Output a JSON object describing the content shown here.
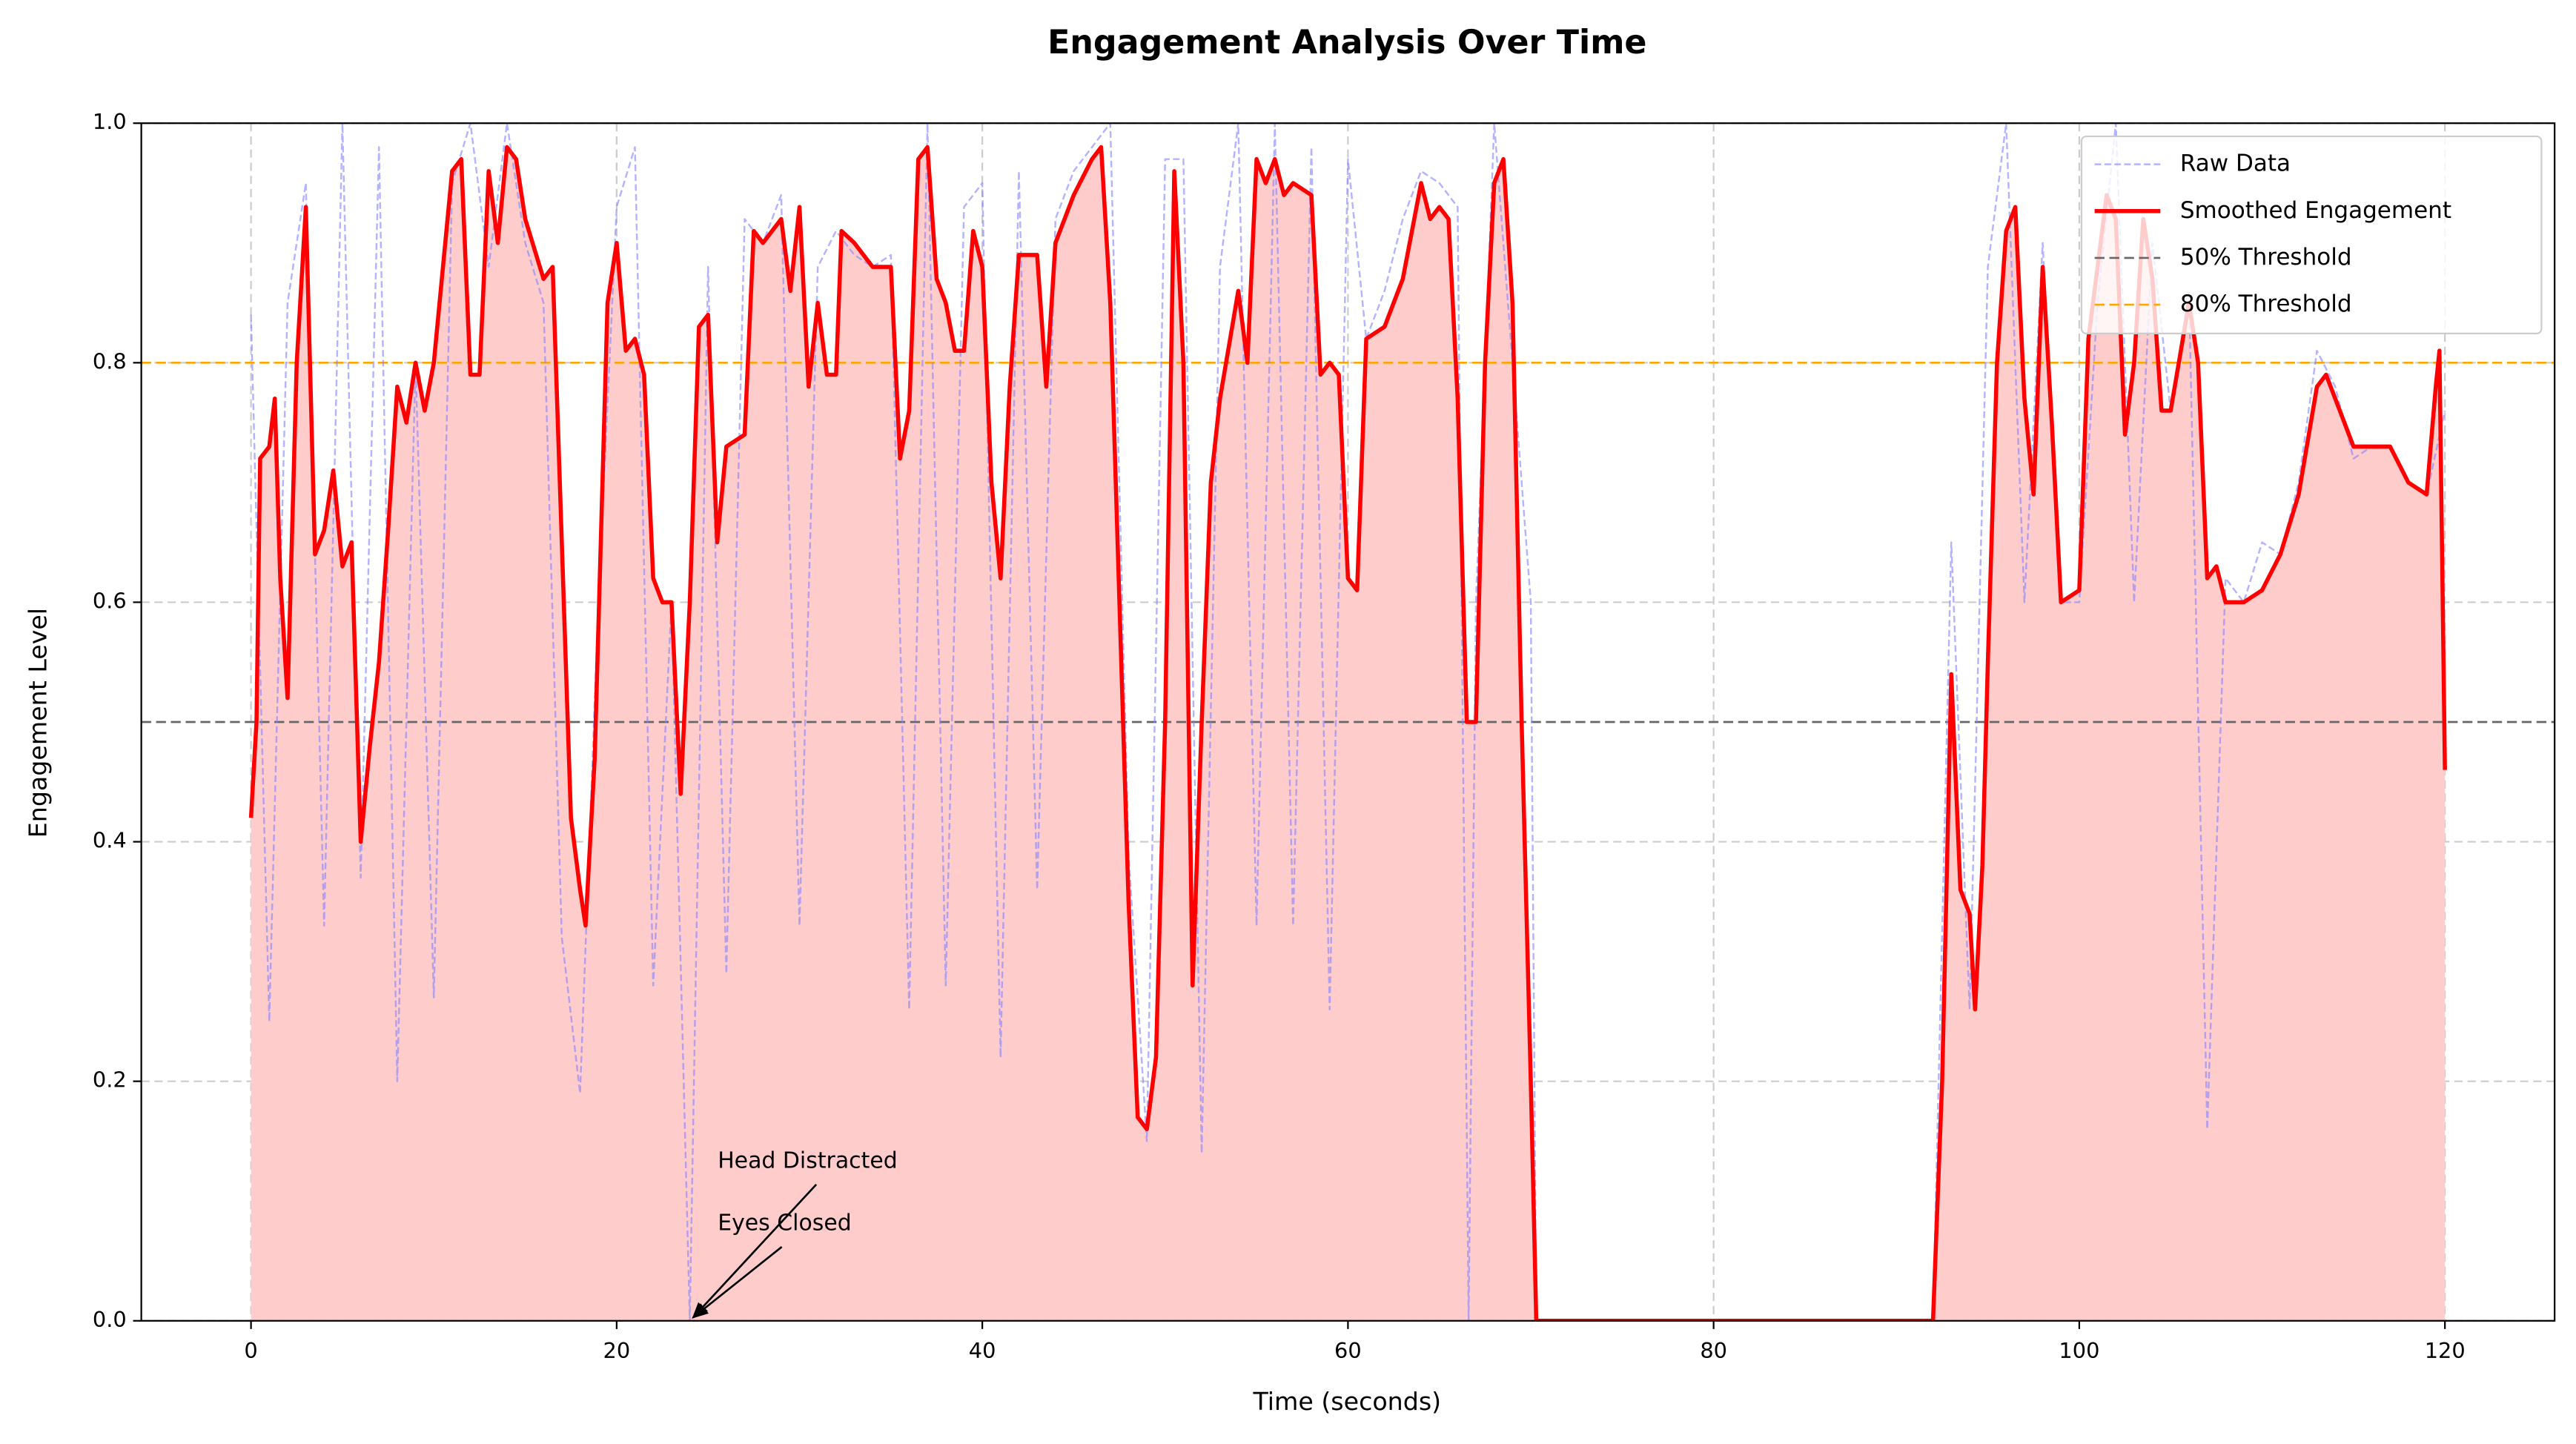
{
  "chart_data": {
    "type": "line",
    "title": "Engagement Analysis Over Time",
    "xlabel": "Time (seconds)",
    "ylabel": "Engagement Level",
    "xlim": [
      -6,
      126
    ],
    "ylim": [
      0,
      1
    ],
    "xticks": [
      0,
      20,
      40,
      60,
      80,
      100,
      120
    ],
    "yticks": [
      {
        "value": 0,
        "label": "0.0"
      },
      0.2,
      0.4,
      0.6,
      0.8,
      {
        "value": 1,
        "label": "1.0"
      }
    ],
    "grid": true,
    "legend": "upper right",
    "series": [
      {
        "name": "Raw Data",
        "color": "#8080ff",
        "style": "dashed",
        "x": [
          0,
          1,
          2,
          3,
          4,
          5,
          6,
          7,
          8,
          9,
          10,
          11,
          12,
          13,
          14,
          15,
          16,
          17,
          18,
          19,
          20,
          21,
          22,
          23,
          24,
          25,
          26,
          27,
          28,
          29,
          30,
          31,
          32,
          33,
          34,
          35,
          36,
          37,
          38,
          39,
          40,
          41,
          42,
          43,
          44,
          45,
          46,
          47,
          48,
          49,
          50,
          51,
          52,
          53,
          54,
          55,
          56,
          57,
          58,
          59,
          60,
          61,
          62,
          63,
          64,
          65,
          66,
          66.6,
          67,
          68,
          69,
          70,
          70.3,
          92,
          93,
          94,
          95,
          96,
          97,
          98,
          99,
          100,
          101,
          102,
          103,
          104,
          105,
          106,
          107,
          108,
          109,
          110,
          111,
          112,
          113,
          114,
          115,
          116,
          117,
          118,
          119,
          120
        ],
        "values": [
          0.84,
          0.25,
          0.85,
          0.95,
          0.33,
          1.0,
          0.37,
          0.98,
          0.2,
          0.8,
          0.27,
          0.95,
          1.0,
          0.88,
          1.0,
          0.9,
          0.85,
          0.32,
          0.19,
          0.6,
          0.93,
          0.98,
          0.28,
          0.6,
          0,
          0.88,
          0.29,
          0.92,
          0.9,
          0.94,
          0.33,
          0.88,
          0.91,
          0.89,
          0.88,
          0.89,
          0.26,
          1.0,
          0.28,
          0.93,
          0.95,
          0.22,
          0.96,
          0.36,
          0.92,
          0.96,
          0.98,
          1.0,
          0.39,
          0.15,
          0.97,
          0.97,
          0.14,
          0.88,
          1.0,
          0.33,
          1.0,
          0.33,
          0.98,
          0.26,
          0.97,
          0.82,
          0.86,
          0.92,
          0.96,
          0.95,
          0.93,
          0,
          0.6,
          1.0,
          0.8,
          0.6,
          0,
          0,
          0.65,
          0.26,
          0.88,
          1.0,
          0.6,
          0.9,
          0.6,
          0.6,
          0.85,
          1.0,
          0.6,
          0.9,
          0.76,
          0.86,
          0.16,
          0.62,
          0.6,
          0.65,
          0.64,
          0.7,
          0.81,
          0.78,
          0.72,
          0.73,
          0.73,
          0.7,
          0.69,
          0.76
        ]
      },
      {
        "name": "Smoothed Engagement",
        "color": "#ff0000",
        "style": "solid",
        "fill": "#ffcccc",
        "x": [
          0,
          0.3,
          0.5,
          1,
          1.3,
          1.6,
          2,
          2.5,
          3,
          3.5,
          4,
          4.5,
          5,
          5.5,
          6,
          6.5,
          7,
          7.5,
          8,
          8.5,
          9,
          9.5,
          10,
          11,
          11.5,
          12,
          12.5,
          13,
          13.5,
          14,
          14.5,
          15,
          16,
          16.5,
          17,
          17.5,
          18,
          18.3,
          18.8,
          19.5,
          20,
          20.5,
          21,
          21.5,
          22,
          22.5,
          23,
          23.5,
          24,
          24.5,
          25,
          25.5,
          26,
          27,
          27.5,
          28,
          29,
          29.5,
          30,
          30.5,
          31,
          31.5,
          32,
          32.3,
          33,
          34,
          35,
          35.5,
          36,
          36.5,
          37,
          37.5,
          38,
          38.5,
          39,
          39.5,
          40,
          40.5,
          41,
          41.5,
          42,
          43,
          43.5,
          44,
          45,
          46,
          46.5,
          47,
          47.5,
          48,
          48.5,
          49,
          49.5,
          50,
          50.5,
          51,
          51.5,
          52,
          52.5,
          53,
          54,
          54.5,
          55,
          55.5,
          56,
          56.5,
          57,
          58,
          58.5,
          59,
          59.5,
          60,
          60.5,
          61,
          62,
          63,
          64,
          64.5,
          65,
          65.5,
          66,
          66.5,
          67,
          67.5,
          68,
          68.5,
          69,
          69.5,
          70,
          70.3,
          80,
          92,
          92.5,
          93,
          93.5,
          94,
          94.3,
          94.7,
          95,
          95.5,
          96,
          96.5,
          97,
          97.5,
          98,
          98.5,
          99,
          100,
          100.5,
          101,
          101.5,
          102,
          102.5,
          103,
          103.5,
          104,
          104.5,
          105,
          106,
          106.5,
          107,
          107.5,
          108,
          109,
          110,
          111,
          112,
          113,
          113.5,
          114,
          115,
          116,
          117,
          118,
          119,
          119.5,
          119.7,
          120
        ],
        "values": [
          0.42,
          0.5,
          0.72,
          0.73,
          0.77,
          0.62,
          0.52,
          0.8,
          0.93,
          0.64,
          0.66,
          0.71,
          0.63,
          0.65,
          0.4,
          0.48,
          0.55,
          0.66,
          0.78,
          0.75,
          0.8,
          0.76,
          0.8,
          0.96,
          0.97,
          0.79,
          0.79,
          0.96,
          0.9,
          0.98,
          0.97,
          0.92,
          0.87,
          0.88,
          0.65,
          0.42,
          0.36,
          0.33,
          0.47,
          0.85,
          0.9,
          0.81,
          0.82,
          0.79,
          0.62,
          0.6,
          0.6,
          0.44,
          0.6,
          0.83,
          0.84,
          0.65,
          0.73,
          0.74,
          0.91,
          0.9,
          0.92,
          0.86,
          0.93,
          0.78,
          0.85,
          0.79,
          0.79,
          0.91,
          0.9,
          0.88,
          0.88,
          0.72,
          0.76,
          0.97,
          0.98,
          0.87,
          0.85,
          0.81,
          0.81,
          0.91,
          0.88,
          0.7,
          0.62,
          0.78,
          0.89,
          0.89,
          0.78,
          0.9,
          0.94,
          0.97,
          0.98,
          0.85,
          0.6,
          0.35,
          0.17,
          0.16,
          0.22,
          0.5,
          0.96,
          0.8,
          0.28,
          0.5,
          0.7,
          0.77,
          0.86,
          0.8,
          0.97,
          0.95,
          0.97,
          0.94,
          0.95,
          0.94,
          0.79,
          0.8,
          0.79,
          0.62,
          0.61,
          0.82,
          0.83,
          0.87,
          0.95,
          0.92,
          0.93,
          0.92,
          0.77,
          0.5,
          0.5,
          0.8,
          0.95,
          0.97,
          0.85,
          0.5,
          0.2,
          0,
          0,
          0,
          0.2,
          0.54,
          0.36,
          0.34,
          0.26,
          0.38,
          0.55,
          0.8,
          0.91,
          0.93,
          0.77,
          0.69,
          0.88,
          0.75,
          0.6,
          0.61,
          0.82,
          0.88,
          0.94,
          0.92,
          0.74,
          0.8,
          0.92,
          0.87,
          0.76,
          0.76,
          0.85,
          0.8,
          0.62,
          0.63,
          0.6,
          0.6,
          0.61,
          0.64,
          0.69,
          0.78,
          0.79,
          0.77,
          0.73,
          0.73,
          0.73,
          0.7,
          0.69,
          0.78,
          0.81,
          0.46
        ]
      }
    ],
    "thresholds": [
      {
        "name": "50% Threshold",
        "value": 0.5,
        "color": "#666666"
      },
      {
        "name": "80% Threshold",
        "value": 0.8,
        "color": "#ffa500"
      }
    ],
    "annotations": [
      {
        "text": "Head Distracted",
        "xy": [
          24,
          0
        ]
      },
      {
        "text": "Eyes Closed",
        "xy": [
          24,
          0
        ]
      }
    ]
  }
}
